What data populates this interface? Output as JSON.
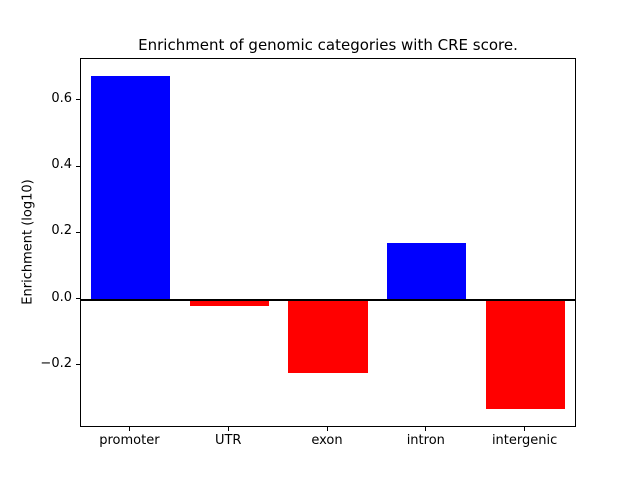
{
  "chart_data": {
    "type": "bar",
    "title": "Enrichment of genomic categories with CRE score.",
    "xlabel": "",
    "ylabel": "Enrichment (log10)",
    "categories": [
      "promoter",
      "UTR",
      "exon",
      "intron",
      "intergenic"
    ],
    "values": [
      0.675,
      -0.02,
      -0.22,
      0.17,
      -0.33
    ],
    "colors": [
      "#0000ff",
      "#ff0000",
      "#ff0000",
      "#0000ff",
      "#ff0000"
    ],
    "positive_color": "#0000ff",
    "negative_color": "#ff0000",
    "yticks": [
      -0.2,
      0.0,
      0.2,
      0.4,
      0.6
    ],
    "ylim": [
      -0.381,
      0.726
    ],
    "grid": false,
    "legend_position": "none",
    "zero_line": true,
    "bar_width_fraction": 0.8
  }
}
